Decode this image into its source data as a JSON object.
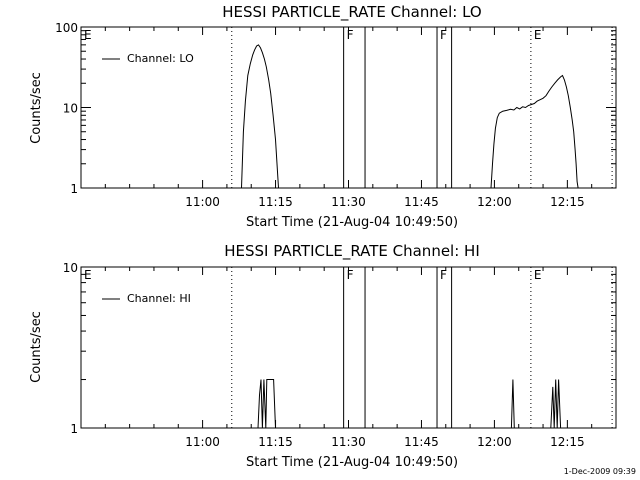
{
  "chart_data": [
    {
      "type": "line",
      "title": "HESSI PARTICLE_RATE Channel: LO",
      "xlabel": "Start Time (21-Aug-04 10:49:50)",
      "ylabel": "Counts/sec",
      "yscale": "log",
      "ylim": [
        1,
        100
      ],
      "xlim_minutes": [
        -15,
        95
      ],
      "x_tick_labels": [
        "11:00",
        "11:15",
        "11:30",
        "11:45",
        "12:00",
        "12:15"
      ],
      "x_ticks_minutes": [
        10,
        25,
        40,
        55,
        70,
        85
      ],
      "y_ticks": [
        1,
        10,
        100
      ],
      "y_tick_labels": [
        "1",
        "10",
        "100"
      ],
      "legend": "Channel: LO",
      "legend_placement": "top-left",
      "series": [
        {
          "name": "Channel: LO",
          "segments": [
            [
              [
                18.0,
                1.0
              ],
              [
                18.4,
                5.0
              ],
              [
                18.8,
                12.0
              ],
              [
                19.3,
                25.0
              ],
              [
                19.8,
                35.0
              ],
              [
                20.3,
                45.0
              ],
              [
                20.7,
                52.0
              ],
              [
                21.1,
                58.0
              ],
              [
                21.5,
                60.0
              ],
              [
                21.9,
                55.0
              ],
              [
                22.3,
                48.0
              ],
              [
                22.7,
                40.0
              ],
              [
                23.1,
                32.0
              ],
              [
                23.6,
                22.0
              ],
              [
                24.0,
                15.0
              ],
              [
                24.5,
                8.0
              ],
              [
                25.0,
                4.0
              ],
              [
                25.3,
                2.0
              ],
              [
                25.6,
                1.0
              ]
            ],
            [
              [
                69.3,
                1.0
              ],
              [
                69.6,
                2.0
              ],
              [
                69.9,
                3.5
              ],
              [
                70.2,
                5.5
              ],
              [
                70.6,
                7.5
              ],
              [
                71.0,
                8.5
              ],
              [
                71.7,
                9.0
              ],
              [
                72.5,
                9.2
              ],
              [
                73.3,
                9.5
              ],
              [
                74.0,
                9.3
              ],
              [
                74.6,
                10.0
              ],
              [
                75.2,
                9.6
              ],
              [
                75.8,
                10.2
              ],
              [
                76.4,
                10.0
              ],
              [
                77.0,
                10.6
              ],
              [
                77.6,
                10.9
              ],
              [
                78.2,
                11.2
              ],
              [
                78.8,
                12.0
              ],
              [
                79.4,
                12.5
              ],
              [
                80.0,
                13.0
              ],
              [
                80.6,
                14.0
              ],
              [
                81.2,
                16.0
              ],
              [
                81.8,
                18.0
              ],
              [
                82.4,
                20.0
              ],
              [
                83.0,
                22.0
              ],
              [
                83.6,
                24.0
              ],
              [
                84.0,
                25.0
              ],
              [
                84.4,
                22.0
              ],
              [
                84.8,
                18.0
              ],
              [
                85.2,
                14.0
              ],
              [
                85.6,
                10.0
              ],
              [
                86.0,
                7.0
              ],
              [
                86.3,
                5.0
              ],
              [
                86.6,
                3.0
              ],
              [
                86.8,
                2.0
              ],
              [
                87.0,
                1.2
              ],
              [
                87.2,
                1.0
              ]
            ]
          ]
        }
      ],
      "vertical_markers": [
        {
          "label": "E",
          "x_minutes": -15,
          "style": "dotted"
        },
        {
          "label": "",
          "x_minutes": 16,
          "style": "dotted"
        },
        {
          "label": "F",
          "x_minutes": 39,
          "style": "solid"
        },
        {
          "label": "",
          "x_minutes": 43.4,
          "style": "solid"
        },
        {
          "label": "F",
          "x_minutes": 58.2,
          "style": "solid"
        },
        {
          "label": "",
          "x_minutes": 61.2,
          "style": "solid"
        },
        {
          "label": "E",
          "x_minutes": 77.5,
          "style": "dotted"
        },
        {
          "label": "",
          "x_minutes": 94.2,
          "style": "dotted"
        }
      ]
    },
    {
      "type": "line",
      "title": "HESSI PARTICLE_RATE Channel: HI",
      "xlabel": "Start Time (21-Aug-04 10:49:50)",
      "ylabel": "Counts/sec",
      "yscale": "log",
      "ylim": [
        1,
        10
      ],
      "xlim_minutes": [
        -15,
        95
      ],
      "x_tick_labels": [
        "11:00",
        "11:15",
        "11:30",
        "11:45",
        "12:00",
        "12:15"
      ],
      "x_ticks_minutes": [
        10,
        25,
        40,
        55,
        70,
        85
      ],
      "y_ticks": [
        1,
        10
      ],
      "y_tick_labels": [
        "1",
        "10"
      ],
      "legend": "Channel: HI",
      "legend_placement": "top-left",
      "series": [
        {
          "name": "Channel: HI",
          "segments": [
            [
              [
                21.4,
                1.0
              ],
              [
                21.7,
                1.6
              ],
              [
                22.0,
                2.0
              ],
              [
                22.3,
                1.0
              ],
              [
                22.6,
                2.0
              ],
              [
                23.0,
                1.0
              ],
              [
                23.2,
                2.0
              ],
              [
                24.6,
                2.0
              ],
              [
                25.0,
                1.0
              ]
            ],
            [
              [
                73.5,
                1.0
              ],
              [
                73.8,
                2.0
              ],
              [
                74.1,
                1.0
              ]
            ],
            [
              [
                81.6,
                1.0
              ],
              [
                82.0,
                1.8
              ],
              [
                82.3,
                1.0
              ],
              [
                82.6,
                2.0
              ],
              [
                82.9,
                1.0
              ],
              [
                83.2,
                2.0
              ],
              [
                83.6,
                1.0
              ]
            ]
          ]
        }
      ],
      "vertical_markers": [
        {
          "label": "E",
          "x_minutes": -15,
          "style": "dotted"
        },
        {
          "label": "",
          "x_minutes": 16,
          "style": "dotted"
        },
        {
          "label": "F",
          "x_minutes": 39,
          "style": "solid"
        },
        {
          "label": "",
          "x_minutes": 43.4,
          "style": "solid"
        },
        {
          "label": "F",
          "x_minutes": 58.2,
          "style": "solid"
        },
        {
          "label": "",
          "x_minutes": 61.2,
          "style": "solid"
        },
        {
          "label": "E",
          "x_minutes": 77.5,
          "style": "dotted"
        },
        {
          "label": "",
          "x_minutes": 94.2,
          "style": "dotted"
        }
      ]
    }
  ],
  "footer": {
    "timestamp": "1-Dec-2009 09:39"
  }
}
